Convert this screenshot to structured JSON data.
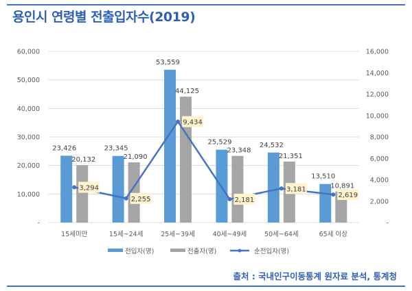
{
  "title": "용인시 연령별 전출입자수(2019)",
  "source": "출처 : 국내인구이동통계 원자료 분석, 통계청",
  "chart_data": {
    "type": "bar",
    "title": "용인시 연령별 전출입자수(2019)",
    "categories": [
      "15세미만",
      "15세~24세",
      "25세~39세",
      "40세~49세",
      "50세~64세",
      "65세 이상"
    ],
    "series": [
      {
        "name": "전입자(명)",
        "type": "bar",
        "axis": "left",
        "color": "#5B9BD5",
        "values": [
          23426,
          23345,
          53559,
          25529,
          24532,
          13510
        ],
        "labels": [
          "23,426",
          "23,345",
          "53,559",
          "25,529",
          "24,532",
          "13,510"
        ]
      },
      {
        "name": "전출자(명)",
        "type": "bar",
        "axis": "left",
        "color": "#A5A5A5",
        "values": [
          20132,
          21090,
          44125,
          23348,
          21351,
          10891
        ],
        "labels": [
          "20,132",
          "21,090",
          "44,125",
          "23,348",
          "21,351",
          "10,891"
        ]
      },
      {
        "name": "순전입자(명)",
        "type": "line",
        "axis": "right",
        "color": "#4472C4",
        "values": [
          3294,
          2255,
          9434,
          2181,
          3181,
          2619
        ],
        "labels": [
          "3,294",
          "2,255",
          "9,434",
          "2,181",
          "3,181",
          "2,619"
        ]
      }
    ],
    "left_axis": {
      "ylim": [
        0,
        60000
      ],
      "ticks": [
        "-",
        "10,000",
        "20,000",
        "30,000",
        "40,000",
        "50,000",
        "60,000"
      ]
    },
    "right_axis": {
      "ylim": [
        0,
        16000
      ],
      "ticks": [
        "-",
        "2,000",
        "4,000",
        "6,000",
        "8,000",
        "10,000",
        "12,000",
        "14,000",
        "16,000"
      ]
    },
    "grid": true,
    "legend": "bottom",
    "line_label_bg": "#FFF2CC"
  }
}
